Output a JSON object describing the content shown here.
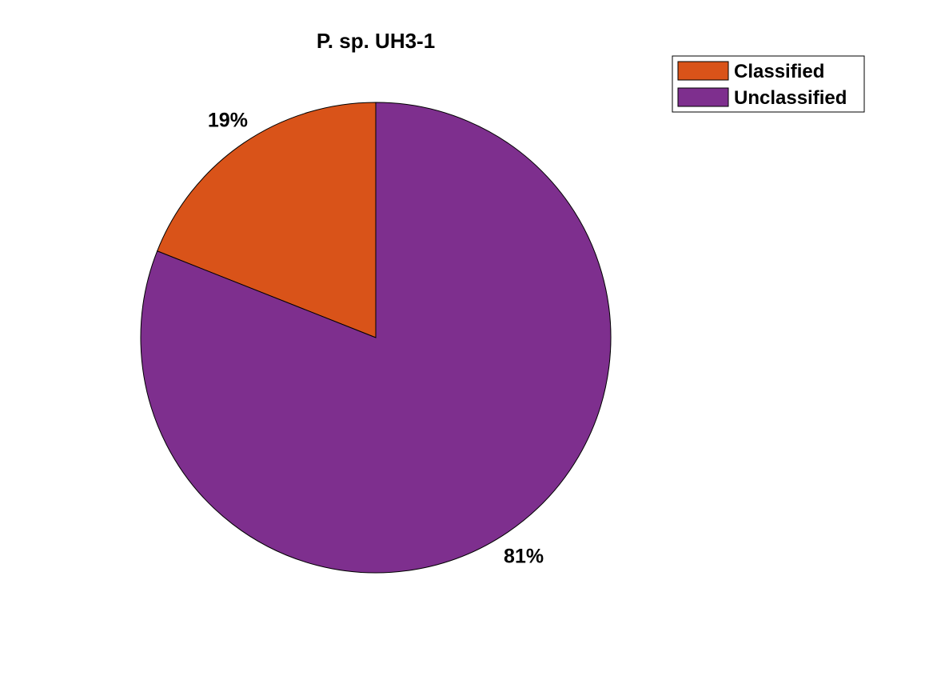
{
  "chart_data": {
    "type": "pie",
    "title": "P. sp. UH3-1",
    "slices": [
      {
        "name": "Classified",
        "value": 19,
        "label": "19%",
        "color": "#D95319"
      },
      {
        "name": "Unclassified",
        "value": 81,
        "label": "81%",
        "color": "#7E2F8E"
      }
    ],
    "legend": {
      "position": "top-right",
      "entries": [
        "Classified",
        "Unclassified"
      ]
    }
  }
}
